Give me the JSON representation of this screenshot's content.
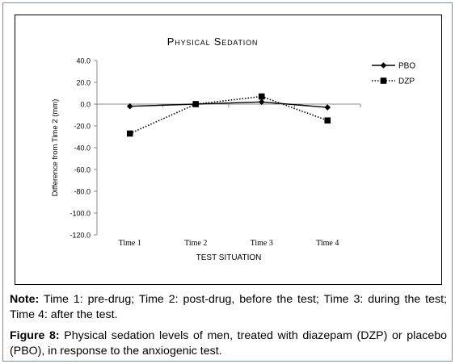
{
  "chart_data": {
    "type": "line",
    "title": "Physical Sedation",
    "xlabel": "TEST SITUATION",
    "ylabel": "Difference from Time 2 (mm)",
    "categories": [
      "Time 1",
      "Time 2",
      "Time 3",
      "Time 4"
    ],
    "ylim": [
      -120,
      40
    ],
    "yticks": [
      -120,
      -100,
      -80,
      -60,
      -40,
      -20,
      0,
      20,
      40
    ],
    "ytick_labels": [
      "-120.0",
      "-100.0",
      "-80.0",
      "-60.0",
      "-40.0",
      "-20.0",
      "0.0",
      "20.0",
      "40.0"
    ],
    "grid": false,
    "legend_position": "right",
    "series": [
      {
        "name": "PBO",
        "values": [
          -2,
          0,
          2,
          -3
        ],
        "color": "#000000",
        "line_style": "solid",
        "marker": "diamond"
      },
      {
        "name": "DZP",
        "values": [
          -27,
          0,
          7,
          -15
        ],
        "color": "#000000",
        "line_style": "dotted",
        "marker": "square"
      }
    ]
  },
  "note": {
    "label": "Note:",
    "text": " Time 1: pre-drug; Time 2: post-drug, before the test; Time 3: during the test; Time 4: after the test."
  },
  "figure": {
    "label": "Figure 8:",
    "text": " Physical sedation levels of men, treated with diazepam (DZP) or placebo (PBO), in response to the anxiogenic test."
  }
}
